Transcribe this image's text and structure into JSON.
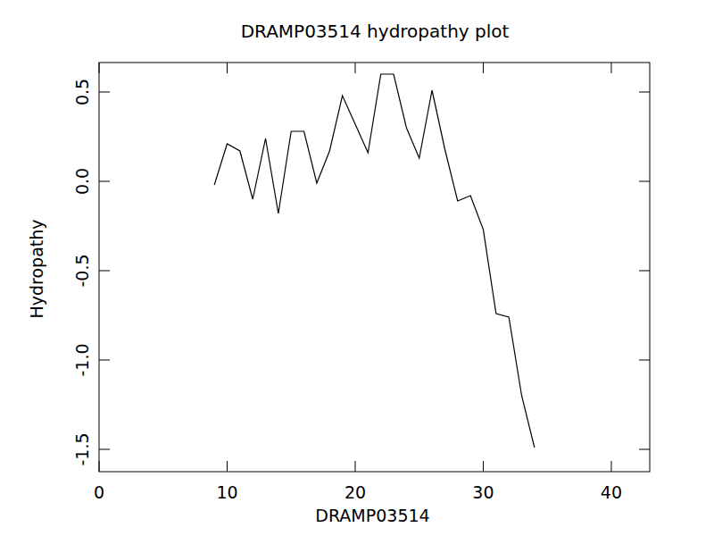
{
  "chart_data": {
    "type": "line",
    "title": "DRAMP03514 hydropathy plot",
    "x_label": "DRAMP03514",
    "y_label": "Hydropathy",
    "x": [
      9,
      10,
      11,
      12,
      13,
      14,
      15,
      16,
      17,
      18,
      19,
      20,
      21,
      22,
      23,
      24,
      25,
      26,
      27,
      28,
      29,
      30,
      31,
      32,
      33,
      34
    ],
    "values": [
      -0.02,
      0.21,
      0.17,
      -0.1,
      0.24,
      -0.18,
      0.28,
      0.28,
      -0.01,
      0.17,
      0.48,
      0.32,
      0.16,
      0.6,
      0.6,
      0.3,
      0.13,
      0.51,
      0.18,
      -0.11,
      -0.08,
      -0.27,
      -0.74,
      -0.76,
      -1.2,
      -1.49
    ],
    "color": "#000000",
    "xlim": [
      0,
      43
    ],
    "xticks": [
      0,
      10,
      20,
      30,
      40
    ],
    "ylim": [
      -1.625,
      0.665
    ],
    "yticks": [
      {
        "value": -1.5,
        "label": "-1.5"
      },
      {
        "value": -1.0,
        "label": "-1.0"
      },
      {
        "value": -0.5,
        "label": "-0.5"
      },
      {
        "value": 0.0,
        "label": "0.0"
      },
      {
        "value": 0.5,
        "label": "0.5"
      }
    ],
    "grid": false
  }
}
